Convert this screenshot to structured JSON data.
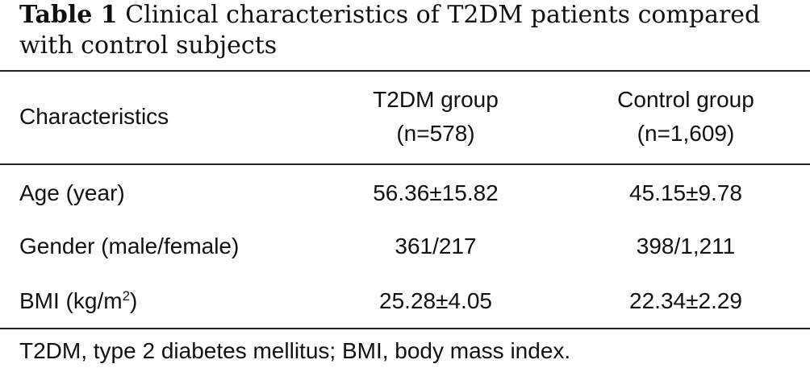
{
  "caption": {
    "label": "Table 1",
    "text": "Clinical characteristics of T2DM patients compared with control subjects"
  },
  "table": {
    "headers": {
      "characteristics": "Characteristics",
      "t2dm_group": "T2DM group",
      "t2dm_n": "(n=578)",
      "control_group": "Control group",
      "control_n": "(n=1,609)"
    },
    "rows": [
      {
        "label": "Age (year)",
        "t2dm": "56.36±15.82",
        "control": "45.15±9.78"
      },
      {
        "label": "Gender (male/female)",
        "t2dm": "361/217",
        "control": "398/1,211"
      },
      {
        "label_prefix": "BMI (kg/m",
        "label_sup": "2",
        "label_suffix": ")",
        "t2dm": "25.28±4.05",
        "control": "22.34±2.29"
      }
    ]
  },
  "footnote": "T2DM, type 2 diabetes mellitus; BMI, body mass index."
}
